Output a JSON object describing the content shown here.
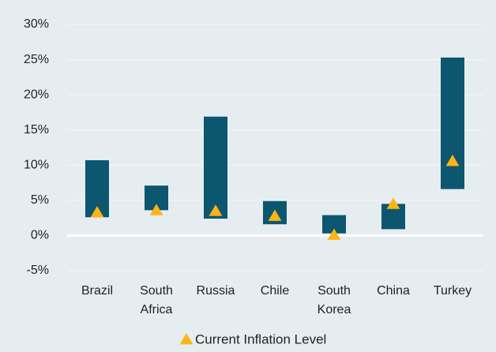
{
  "chart_data": {
    "type": "floating_bar",
    "categories": [
      "Brazil",
      "South Africa",
      "Russia",
      "Chile",
      "South Korea",
      "China",
      "Turkey"
    ],
    "ranges": {
      "color": "#0d5670",
      "low": [
        2.6,
        3.6,
        2.4,
        1.6,
        0.3,
        0.9,
        6.6
      ],
      "high": [
        10.7,
        7.1,
        16.9,
        4.9,
        2.9,
        4.5,
        25.3
      ]
    },
    "series": [
      {
        "name": "Current Inflation Level",
        "color": "#fdb515",
        "values": [
          3.3,
          3.6,
          3.5,
          2.8,
          0.1,
          4.5,
          10.6
        ]
      }
    ],
    "ylim": [
      -5,
      30
    ],
    "yticks": [
      {
        "value": -5,
        "label": "-5%"
      },
      {
        "value": 0,
        "label": "0%"
      },
      {
        "value": 5,
        "label": "5%"
      },
      {
        "value": 10,
        "label": "10%"
      },
      {
        "value": 15,
        "label": "15%"
      },
      {
        "value": 20,
        "label": "20%"
      },
      {
        "value": 25,
        "label": "25%"
      },
      {
        "value": 30,
        "label": "30%"
      }
    ],
    "grid": true,
    "legend": "bottom"
  }
}
